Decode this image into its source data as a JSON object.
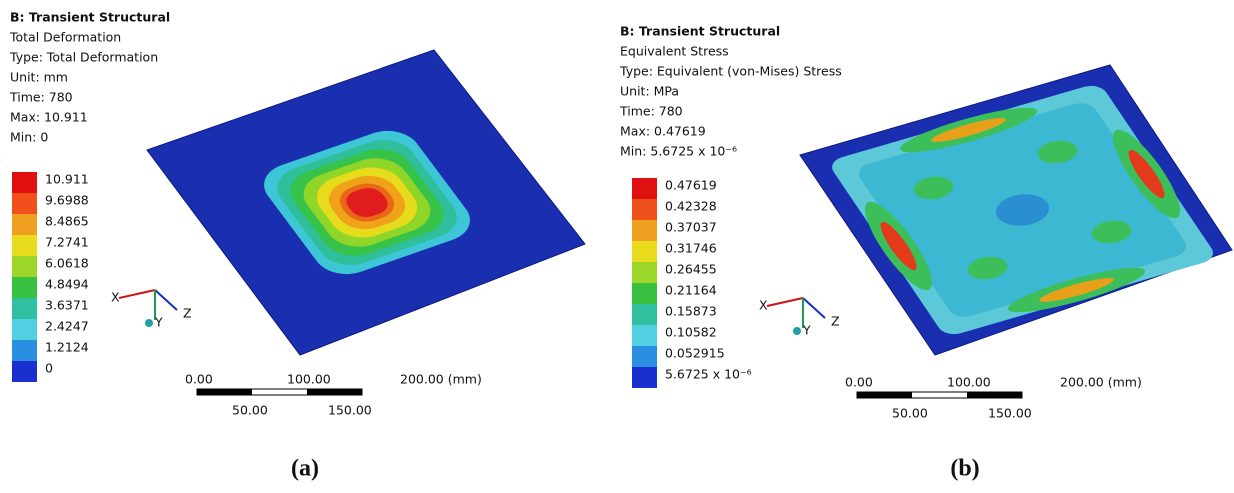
{
  "panels": [
    {
      "header": {
        "title": "B: Transient Structural",
        "lines": [
          "Total Deformation",
          "Type: Total Deformation",
          "Unit: mm",
          "Time: 780",
          "Max: 10.911",
          "Min: 0"
        ]
      },
      "legend": [
        "10.911",
        "9.6988",
        "8.4865",
        "7.2741",
        "6.0618",
        "4.8494",
        "3.6371",
        "2.4247",
        "1.2124",
        "0"
      ],
      "axes": [
        "X",
        "Y",
        "Z"
      ],
      "scale": {
        "top": [
          "0.00",
          "100.00",
          "200.00 (mm)"
        ],
        "bottom": [
          "50.00",
          "150.00"
        ]
      },
      "caption": "(a)"
    },
    {
      "header": {
        "title": "B: Transient Structural",
        "lines": [
          "Equivalent Stress",
          "Type: Equivalent (von-Mises) Stress",
          "Unit: MPa",
          "Time: 780",
          "Max: 0.47619",
          "Min: 5.6725 x 10⁻⁶"
        ]
      },
      "legend": [
        "0.47619",
        "0.42328",
        "0.37037",
        "0.31746",
        "0.26455",
        "0.21164",
        "0.15873",
        "0.10582",
        "0.052915",
        "5.6725 x 10⁻⁶"
      ],
      "axes": [
        "X",
        "Y",
        "Z"
      ],
      "scale": {
        "top": [
          "0.00",
          "100.00",
          "200.00 (mm)"
        ],
        "bottom": [
          "50.00",
          "150.00"
        ]
      },
      "caption": "(b)"
    }
  ]
}
